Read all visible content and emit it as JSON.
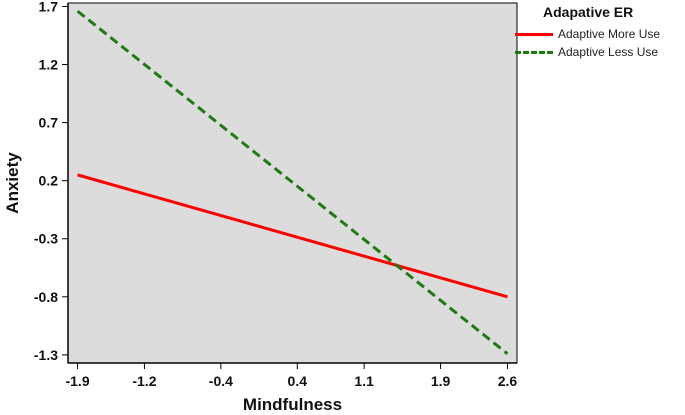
{
  "chart_data": {
    "type": "line",
    "xlabel": "Mindfulness",
    "ylabel": "Anxiety",
    "x_ticks": [
      "-1.9",
      "-1.2",
      "-0.4",
      "0.4",
      "1.1",
      "1.9",
      "2.6"
    ],
    "y_ticks": [
      "1.7",
      "1.2",
      "0.7",
      "0.2",
      "-0.3",
      "-0.8",
      "-1.3"
    ],
    "xlim": [
      -2.0,
      2.7
    ],
    "ylim": [
      -1.37,
      1.73
    ],
    "grid": false,
    "legend_position": "right",
    "legend_title": "Adapative ER",
    "series": [
      {
        "name": "Adaptive More Use",
        "color": "#ff0000",
        "dash": "solid",
        "x": [
          -1.9,
          2.6
        ],
        "y": [
          0.25,
          -0.8
        ]
      },
      {
        "name": "Adaptive Less Use",
        "color": "#1e7b12",
        "dash": "dashed",
        "x": [
          -1.9,
          2.6
        ],
        "y": [
          1.66,
          -1.29
        ]
      }
    ]
  }
}
